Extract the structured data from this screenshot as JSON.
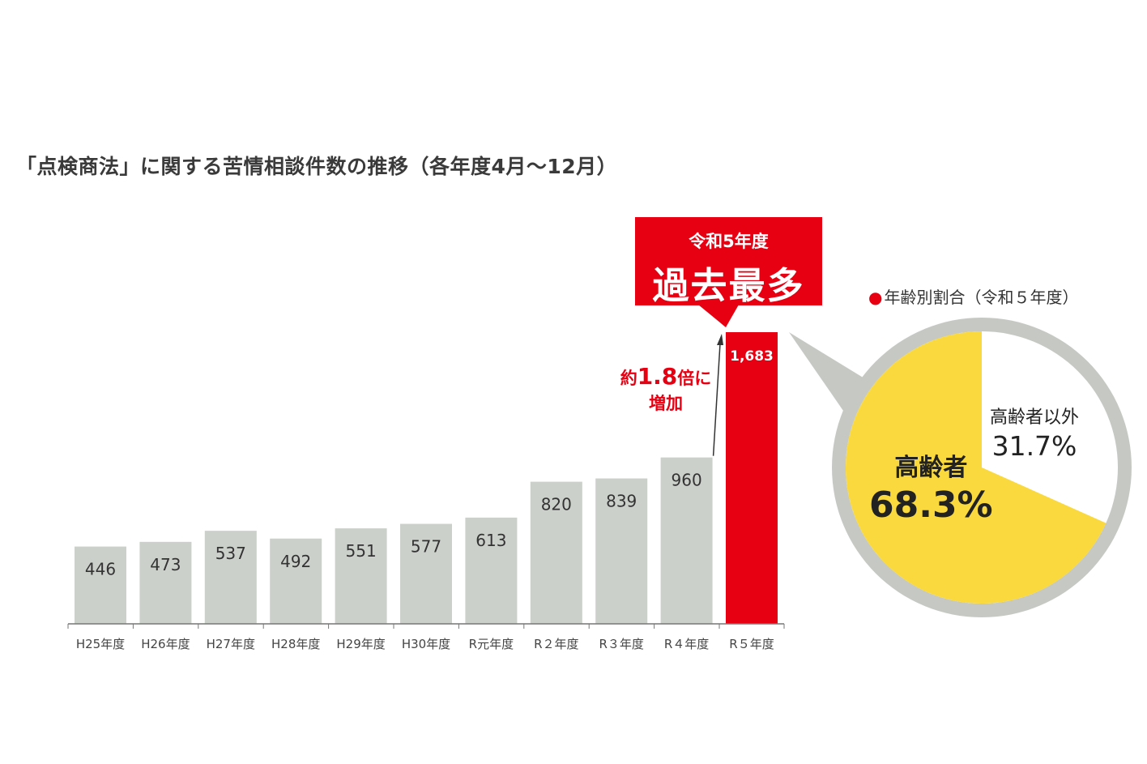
{
  "title": "「点検商法」に関する苦情相談件数の推移（各年度4月～12月）",
  "callout": {
    "sub": "令和5年度",
    "main": "過去最多"
  },
  "increase": {
    "prefix": "約",
    "value": "1.8",
    "suffix": "倍に",
    "line2": "増加"
  },
  "pie_legend": {
    "bullet": "●",
    "text": "年齢別割合（令和５年度）"
  },
  "colors": {
    "bar": "#cbd0ca",
    "highlight": "#e60012",
    "pie_elderly": "#f9d93e",
    "pie_other": "#ffffff",
    "pie_ring": "#c6c9c3",
    "axis": "#777777"
  },
  "chart_data": [
    {
      "type": "bar",
      "categories": [
        "H25年度",
        "H26年度",
        "H27年度",
        "H28年度",
        "H29年度",
        "H30年度",
        "R元年度",
        "R２年度",
        "R３年度",
        "R４年度",
        "R５年度"
      ],
      "values": [
        446,
        473,
        537,
        492,
        551,
        577,
        613,
        820,
        839,
        960,
        1683
      ],
      "value_labels": [
        "446",
        "473",
        "537",
        "492",
        "551",
        "577",
        "613",
        "820",
        "839",
        "960",
        "1,683"
      ],
      "highlight_index": 10,
      "title": "「点検商法」に関する苦情相談件数の推移（各年度4月～12月）",
      "ylim": [
        0,
        1683
      ],
      "grid": false
    },
    {
      "type": "pie",
      "title": "年齢別割合（令和５年度）",
      "labels": [
        "高齢者",
        "高齢者以外"
      ],
      "values": [
        68.3,
        31.7
      ],
      "value_labels": [
        "68.3%",
        "31.7%"
      ]
    }
  ]
}
